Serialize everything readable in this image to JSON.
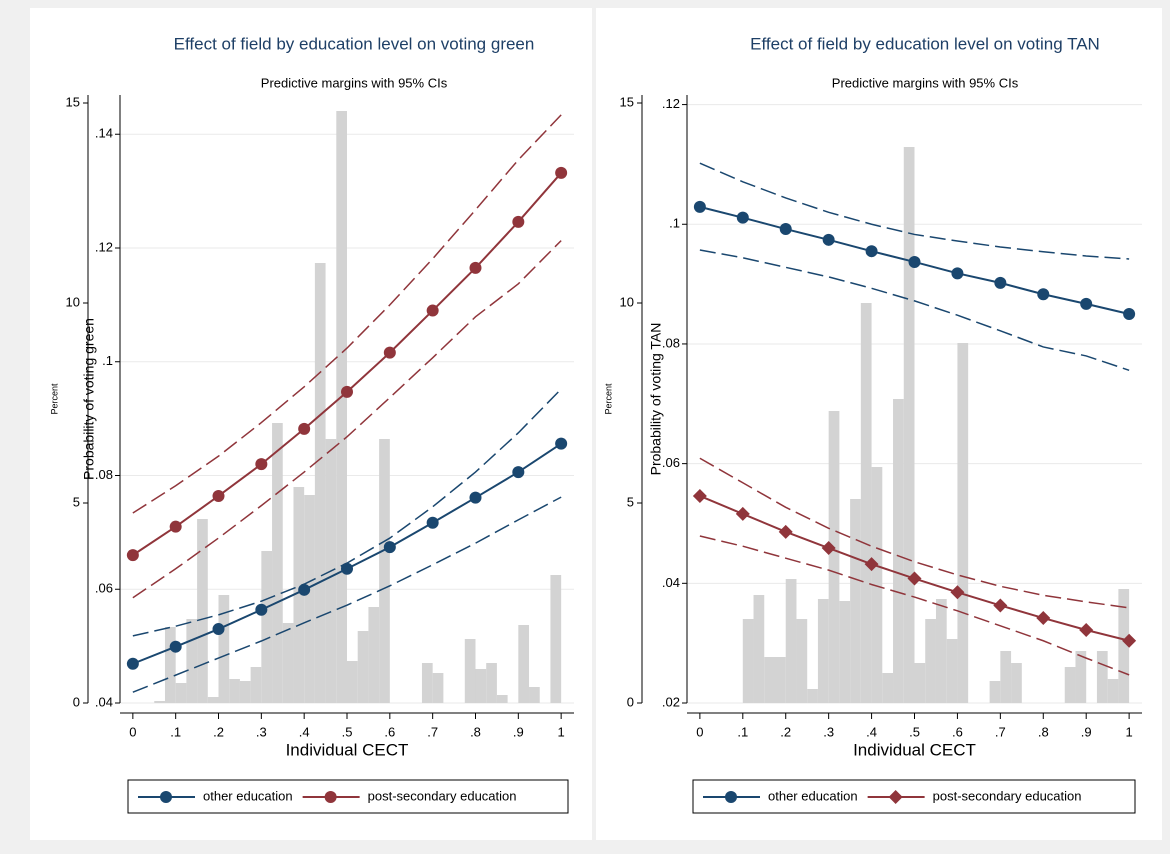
{
  "chart_data": [
    {
      "type": "line",
      "title": "Effect of field by education level on voting green",
      "subtitle": "Predictive margins with 95% CIs",
      "xlabel": "Individual CECT",
      "ylabel": "Probability of voting green",
      "y2label": "Percent",
      "x": [
        0,
        0.1,
        0.2,
        0.3,
        0.4,
        0.5,
        0.6,
        0.7,
        0.8,
        0.9,
        1
      ],
      "xlim": [
        -0.03,
        1.03
      ],
      "xticks": [
        0,
        {
          "value": 0.1,
          "label": ".1"
        },
        {
          "value": 0.2,
          "label": ".2"
        },
        {
          "value": 0.3,
          "label": ".3"
        },
        {
          "value": 0.4,
          "label": ".4"
        },
        {
          "value": 0.5,
          "label": ".5"
        },
        {
          "value": 0.6,
          "label": ".6"
        },
        {
          "value": 0.7,
          "label": ".7"
        },
        {
          "value": 0.8,
          "label": ".8"
        },
        {
          "value": 0.9,
          "label": ".9"
        },
        1
      ],
      "ylim": [
        0.04,
        0.1469
      ],
      "yticks": [
        {
          "value": 0.04,
          "label": ".04"
        },
        {
          "value": 0.06,
          "label": ".06"
        },
        {
          "value": 0.08,
          "label": ".08"
        },
        {
          "value": 0.1,
          "label": ".1"
        },
        {
          "value": 0.12,
          "label": ".12"
        },
        {
          "value": 0.14,
          "label": ".14"
        }
      ],
      "y2lim": [
        0,
        15.2
      ],
      "y2ticks": [
        0,
        5,
        10,
        15
      ],
      "grid": true,
      "histogram": {
        "color": "#d3d3d3",
        "axis": "y2",
        "bins": [
          0,
          0.025,
          0.05,
          0.075,
          0.1,
          0.125,
          0.15,
          0.175,
          0.2,
          0.225,
          0.25,
          0.275,
          0.3,
          0.325,
          0.35,
          0.375,
          0.4,
          0.425,
          0.45,
          0.475,
          0.5,
          0.525,
          0.55,
          0.575,
          0.6,
          0.625,
          0.65,
          0.675,
          0.7,
          0.725,
          0.75,
          0.775,
          0.8,
          0.825,
          0.85,
          0.875,
          0.9,
          0.925,
          0.95,
          0.975,
          1
        ],
        "counts": [
          0,
          0,
          0.05,
          1.9,
          0.5,
          2.1,
          4.6,
          0.15,
          2.7,
          0.6,
          0.55,
          0.9,
          3.8,
          7,
          2,
          5.4,
          5.2,
          11,
          6.6,
          14.8,
          1.05,
          1.8,
          2.4,
          6.6,
          0,
          0,
          0,
          1,
          0.75,
          0,
          0,
          1.6,
          0.85,
          1,
          0.2,
          0,
          1.95,
          0.4,
          0,
          3.2
        ]
      },
      "series": [
        {
          "name": "other education",
          "color": "#1a476f",
          "marker": "circle",
          "values": [
            0.0469,
            0.0499,
            0.053,
            0.0564,
            0.0599,
            0.0636,
            0.0674,
            0.0717,
            0.0761,
            0.0806,
            0.0856
          ],
          "lower": [
            0.0419,
            0.0449,
            0.0479,
            0.0509,
            0.0541,
            0.0572,
            0.0606,
            0.0643,
            0.0681,
            0.0722,
            0.0762
          ],
          "upper": [
            0.0518,
            0.0535,
            0.0555,
            0.0579,
            0.0609,
            0.0646,
            0.069,
            0.0745,
            0.0806,
            0.0875,
            0.0952
          ]
        },
        {
          "name": "post-secondary education",
          "color": "#90353b",
          "marker": "circle",
          "values": [
            0.066,
            0.071,
            0.0764,
            0.082,
            0.0882,
            0.0947,
            0.1016,
            0.109,
            0.1165,
            0.1246,
            0.1332
          ],
          "lower": [
            0.0585,
            0.0636,
            0.069,
            0.0747,
            0.0806,
            0.0868,
            0.0937,
            0.1007,
            0.1079,
            0.1137,
            0.1213
          ],
          "upper": [
            0.0734,
            0.0782,
            0.0834,
            0.0893,
            0.0956,
            0.1024,
            0.11,
            0.1181,
            0.1267,
            0.1355,
            0.1434
          ]
        }
      ]
    },
    {
      "type": "line",
      "title": "Effect of field by education level on voting TAN",
      "subtitle": "Predictive margins with 95% CIs",
      "xlabel": "Individual CECT",
      "ylabel": "Probability of voting TAN",
      "y2label": "Percent",
      "x": [
        0,
        0.1,
        0.2,
        0.3,
        0.4,
        0.5,
        0.6,
        0.7,
        0.8,
        0.9,
        1
      ],
      "xlim": [
        -0.03,
        1.03
      ],
      "xticks": [
        0,
        {
          "value": 0.1,
          "label": ".1"
        },
        {
          "value": 0.2,
          "label": ".2"
        },
        {
          "value": 0.3,
          "label": ".3"
        },
        {
          "value": 0.4,
          "label": ".4"
        },
        {
          "value": 0.5,
          "label": ".5"
        },
        {
          "value": 0.6,
          "label": ".6"
        },
        {
          "value": 0.7,
          "label": ".7"
        },
        {
          "value": 0.8,
          "label": ".8"
        },
        {
          "value": 0.9,
          "label": ".9"
        },
        1
      ],
      "ylim": [
        0.02,
        0.1216
      ],
      "yticks": [
        {
          "value": 0.02,
          "label": ".02"
        },
        {
          "value": 0.04,
          "label": ".04"
        },
        {
          "value": 0.06,
          "label": ".06"
        },
        {
          "value": 0.08,
          "label": ".08"
        },
        {
          "value": 0.1,
          "label": ".1"
        },
        {
          "value": 0.12,
          "label": ".12"
        }
      ],
      "y2lim": [
        0,
        15.2
      ],
      "y2ticks": [
        0,
        5,
        10,
        15
      ],
      "grid": true,
      "histogram": {
        "color": "#d3d3d3",
        "axis": "y2",
        "bins": [
          0,
          0.025,
          0.05,
          0.075,
          0.1,
          0.125,
          0.15,
          0.175,
          0.2,
          0.225,
          0.25,
          0.275,
          0.3,
          0.325,
          0.35,
          0.375,
          0.4,
          0.425,
          0.45,
          0.475,
          0.5,
          0.525,
          0.55,
          0.575,
          0.6,
          0.625,
          0.65,
          0.675,
          0.7,
          0.725,
          0.75,
          0.775,
          0.8,
          0.825,
          0.85,
          0.875,
          0.9,
          0.925,
          0.95,
          0.975,
          1
        ],
        "counts": [
          0,
          0,
          0,
          0,
          2.1,
          2.7,
          1.15,
          1.15,
          3.1,
          2.1,
          0.35,
          2.6,
          7.3,
          2.55,
          5.1,
          10,
          5.9,
          0.75,
          7.6,
          13.9,
          1,
          2.1,
          2.6,
          1.6,
          9,
          0,
          0,
          0.55,
          1.3,
          1,
          0,
          0,
          0,
          0,
          0.9,
          1.3,
          0,
          1.3,
          0.6,
          2.85
        ]
      },
      "series": [
        {
          "name": "other education",
          "color": "#1a476f",
          "marker": "circle",
          "values": [
            0.1029,
            0.1011,
            0.0992,
            0.0974,
            0.0955,
            0.0937,
            0.0918,
            0.0902,
            0.0883,
            0.0867,
            0.085
          ],
          "lower": [
            0.0957,
            0.0944,
            0.0928,
            0.0912,
            0.0893,
            0.0872,
            0.0848,
            0.0822,
            0.0795,
            0.078,
            0.0756
          ],
          "upper": [
            0.1102,
            0.1071,
            0.1044,
            0.102,
            0.1,
            0.0983,
            0.0972,
            0.0962,
            0.0954,
            0.0947,
            0.0942
          ]
        },
        {
          "name": "post-secondary education",
          "color": "#90353b",
          "marker": "diamond",
          "values": [
            0.0546,
            0.0516,
            0.0486,
            0.0459,
            0.0432,
            0.0408,
            0.0385,
            0.0363,
            0.0342,
            0.0322,
            0.0304
          ],
          "lower": [
            0.0479,
            0.0462,
            0.0442,
            0.0422,
            0.0398,
            0.0377,
            0.0354,
            0.0329,
            0.0304,
            0.0275,
            0.0247
          ],
          "upper": [
            0.0609,
            0.0568,
            0.0527,
            0.0492,
            0.0462,
            0.0436,
            0.0414,
            0.0395,
            0.038,
            0.0369,
            0.0359
          ]
        }
      ]
    }
  ]
}
